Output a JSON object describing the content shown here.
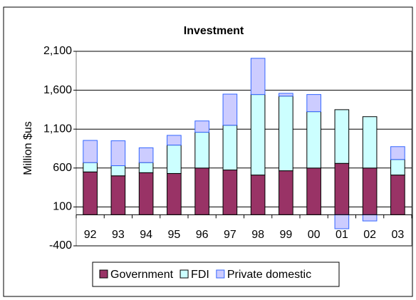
{
  "chart_data": {
    "type": "stacked_bar",
    "title": "Investment",
    "y_label": "Million $us",
    "categories": [
      "92",
      "93",
      "94",
      "95",
      "96",
      "97",
      "98",
      "99",
      "00",
      "01",
      "02",
      "03"
    ],
    "series": [
      {
        "name": "Government",
        "color": "#993366",
        "values": [
          550,
          500,
          540,
          530,
          600,
          575,
          510,
          565,
          600,
          660,
          600,
          510
        ]
      },
      {
        "name": "FDI",
        "color": "#ccffff",
        "values": [
          120,
          130,
          130,
          365,
          460,
          575,
          1035,
          960,
          725,
          690,
          660,
          200
        ]
      },
      {
        "name": "Private domestic",
        "color": "#ccccff",
        "values": [
          285,
          320,
          190,
          125,
          145,
          400,
          465,
          35,
          220,
          -180,
          -80,
          165
        ]
      }
    ],
    "ylim": [
      -400,
      2100
    ],
    "yticks": [
      -400,
      100,
      600,
      {
        "value": 1100,
        "label": "1,100"
      },
      {
        "value": 1600,
        "label": "1,600"
      },
      {
        "value": 2100,
        "label": "2,100"
      }
    ],
    "grid": true,
    "legend": "bottom"
  }
}
